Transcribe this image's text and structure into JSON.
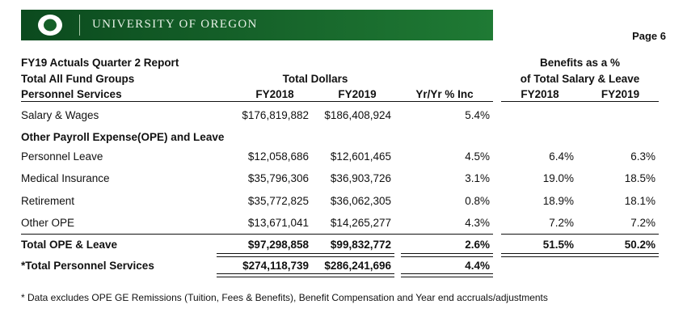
{
  "header": {
    "university_name": "UNIVERSITY OF OREGON",
    "page_label": "Page 6",
    "brand_colors": {
      "green": "#155f28",
      "yellow": "#fee123"
    }
  },
  "report": {
    "title_line1": "FY19 Actuals Quarter 2 Report",
    "title_line2": "Total All Fund Groups",
    "section_label": "Personnel Services",
    "total_dollars_label": "Total Dollars",
    "benefits_label_line1": "Benefits as a %",
    "benefits_label_line2": "of Total Salary & Leave",
    "col_fy2018": "FY2018",
    "col_fy2019": "FY2019",
    "col_yoy": "Yr/Yr % Inc",
    "col_ben_fy2018": "FY2018",
    "col_ben_fy2019": "FY2019"
  },
  "rows": {
    "salary": {
      "label": "Salary & Wages",
      "fy2018": "$176,819,882",
      "fy2019": "$186,408,924",
      "yoy": "5.4%"
    },
    "ope_header": {
      "label": "Other Payroll Expense(OPE) and Leave"
    },
    "personnel_leave": {
      "label": "Personnel Leave",
      "fy2018": "$12,058,686",
      "fy2019": "$12,601,465",
      "yoy": "4.5%",
      "ben2018": "6.4%",
      "ben2019": "6.3%"
    },
    "medical": {
      "label": "Medical Insurance",
      "fy2018": "$35,796,306",
      "fy2019": "$36,903,726",
      "yoy": "3.1%",
      "ben2018": "19.0%",
      "ben2019": "18.5%"
    },
    "retirement": {
      "label": "Retirement",
      "fy2018": "$35,772,825",
      "fy2019": "$36,062,305",
      "yoy": "0.8%",
      "ben2018": "18.9%",
      "ben2019": "18.1%"
    },
    "other_ope": {
      "label": "Other OPE",
      "fy2018": "$13,671,041",
      "fy2019": "$14,265,277",
      "yoy": "4.3%",
      "ben2018": "7.2%",
      "ben2019": "7.2%"
    },
    "total_ope": {
      "label": "Total OPE & Leave",
      "fy2018": "$97,298,858",
      "fy2019": "$99,832,772",
      "yoy": "2.6%",
      "ben2018": "51.5%",
      "ben2019": "50.2%"
    },
    "total_personnel": {
      "label": "*Total Personnel Services",
      "fy2018": "$274,118,739",
      "fy2019": "$286,241,696",
      "yoy": "4.4%"
    }
  },
  "footnote": "* Data excludes OPE GE Remissions (Tuition, Fees & Benefits), Benefit Compensation and Year end accruals/adjustments"
}
